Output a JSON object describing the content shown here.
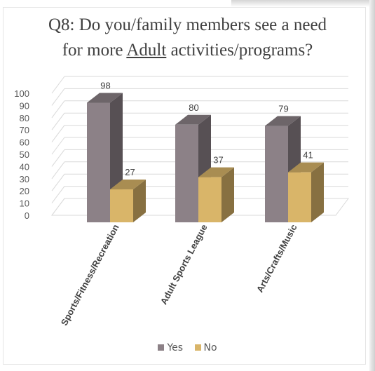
{
  "chart_data": {
    "type": "bar",
    "title_line1": "Q8: Do you/family members see a need",
    "title_line2_pre": "for more ",
    "title_line2_ul": "Adult",
    "title_line2_post": " activities/programs?",
    "categories": [
      "Sports/Fitness/Recreation",
      "Adult Sports League",
      "Arts/Crafts/Music"
    ],
    "series": [
      {
        "name": "Yes",
        "values": [
          98,
          80,
          79
        ],
        "color": "#8c8187"
      },
      {
        "name": "No",
        "values": [
          27,
          37,
          41
        ],
        "color": "#d9b569"
      }
    ],
    "ylim": [
      0,
      100
    ],
    "yticks": [
      0,
      10,
      20,
      30,
      40,
      50,
      60,
      70,
      80,
      90,
      100
    ],
    "grid": true,
    "legend_position": "bottom",
    "three_d": true
  }
}
